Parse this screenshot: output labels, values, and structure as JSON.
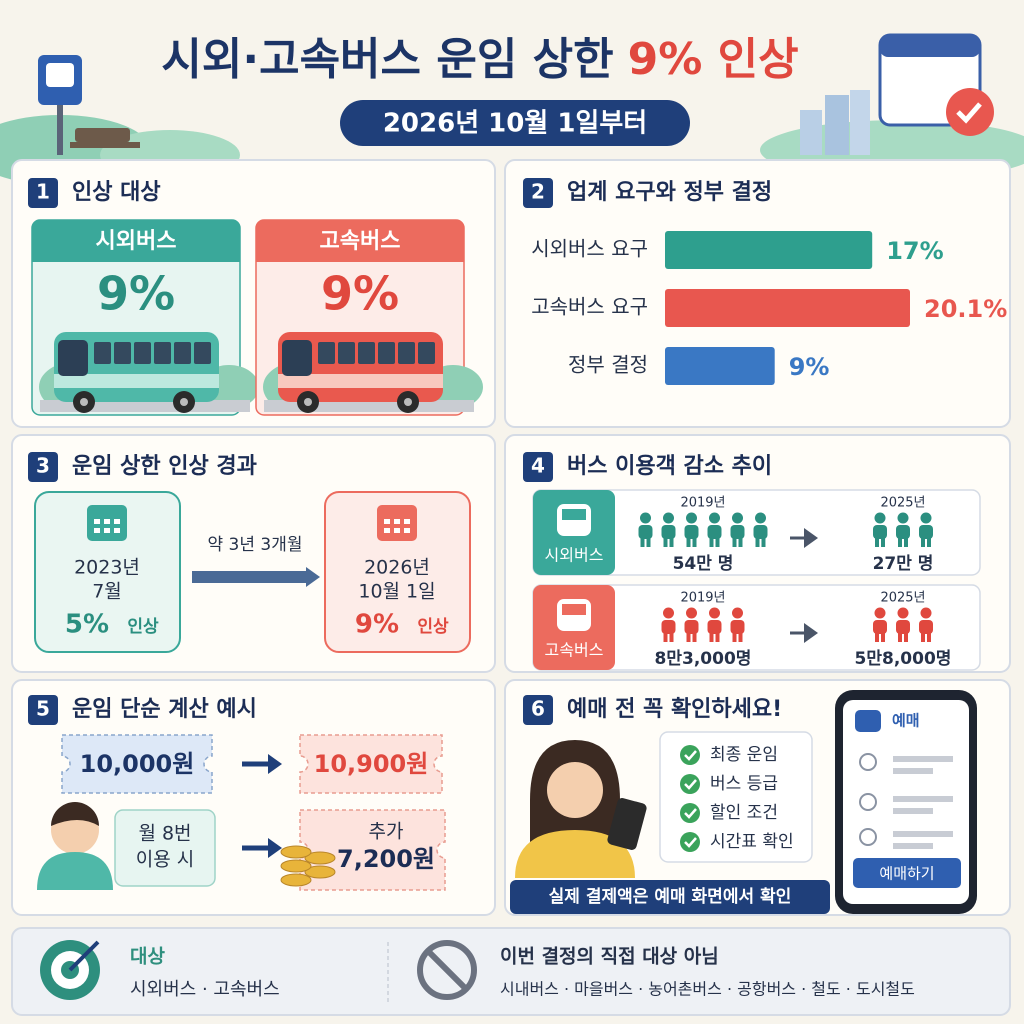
{
  "header": {
    "title": "시외·고속버스 운임 상한",
    "title_highlight": "9% 인상",
    "date": "2026년 10월 1일부터"
  },
  "section1": {
    "number": "1",
    "title": "인상 대상",
    "cards": [
      {
        "label": "시외버스",
        "rate": "9%"
      },
      {
        "label": "고속버스",
        "rate": "9%"
      }
    ]
  },
  "section2": {
    "number": "2",
    "title": "업계 요구와 정부 결정",
    "chart": {
      "type": "bar",
      "orientation": "horizontal",
      "categories": [
        "시외버스 요구",
        "고속버스 요구",
        "정부 결정"
      ],
      "values": [
        17,
        20.1,
        9
      ],
      "value_labels": [
        "17%",
        "20.1%",
        "9%"
      ],
      "colors": [
        "#2e9f8e",
        "#e8574f",
        "#3a78c4"
      ]
    }
  },
  "section3": {
    "number": "3",
    "title": "운임 상한 인상 경과",
    "before": {
      "date_lines": [
        "2023년",
        "7월"
      ],
      "rate": "5%",
      "note": "인상"
    },
    "gap": "약 3년 3개월",
    "after": {
      "date_lines": [
        "2026년",
        "10월 1일"
      ],
      "rate": "9%",
      "note": "인상"
    }
  },
  "section4": {
    "number": "4",
    "title": "버스 이용객 감소 추이",
    "rows": [
      {
        "label": "시외버스",
        "years": [
          "2019년",
          "2025년"
        ],
        "counts": [
          "54만 명",
          "27만 명"
        ]
      },
      {
        "label": "고속버스",
        "years": [
          "2019년",
          "2025년"
        ],
        "counts": [
          "8만3,000명",
          "5만8,000명"
        ]
      }
    ]
  },
  "section5": {
    "number": "5",
    "title": "운임 단순 계산 예시",
    "fare_before": "10,000원",
    "fare_after": "10,900원",
    "condition_lines": [
      "월 8번",
      "이용 시"
    ],
    "extra_lines": [
      "추가",
      "7,200원"
    ]
  },
  "section6": {
    "number": "6",
    "title": "예매 전 꼭 확인하세요!",
    "checklist": [
      "최종 운임",
      "버스 등급",
      "할인 조건",
      "시간표 확인"
    ],
    "banner": "실제 결제액은 예매 화면에서 확인",
    "phone": {
      "header": "예매",
      "button": "예매하기"
    }
  },
  "footer": {
    "target": {
      "title": "대상",
      "text": "시외버스 · 고속버스"
    },
    "excluded": {
      "title": "이번 결정의 직접 대상 아님",
      "text": "시내버스 · 마을버스 · 농어촌버스 · 공항버스 · 철도 · 도시철도"
    }
  }
}
